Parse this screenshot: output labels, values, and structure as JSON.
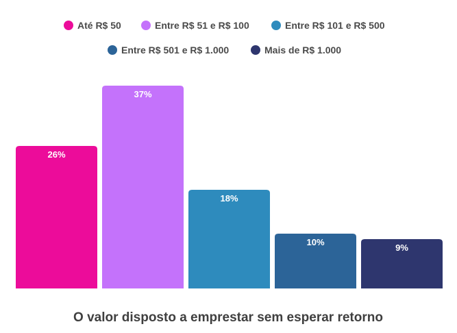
{
  "chart_data": {
    "type": "bar",
    "title": "",
    "xlabel": "O valor disposto a emprestar sem esperar retorno",
    "ylabel": "",
    "ylim": [
      0,
      40
    ],
    "grid": false,
    "legend_position": "top",
    "series": [
      {
        "name": "Até R$ 50",
        "value": 26,
        "label": "26%",
        "color": "#ec0c9a"
      },
      {
        "name": "Entre R$ 51 e R$ 100",
        "value": 37,
        "label": "37%",
        "color": "#c472fb"
      },
      {
        "name": "Entre R$ 101 e R$ 500",
        "value": 18,
        "label": "18%",
        "color": "#2e8bbd"
      },
      {
        "name": "Entre R$ 501 e R$ 1.000",
        "value": 10,
        "label": "10%",
        "color": "#2c6498"
      },
      {
        "name": "Mais de R$ 1.000",
        "value": 9,
        "label": "9%",
        "color": "#2e366e"
      }
    ]
  }
}
